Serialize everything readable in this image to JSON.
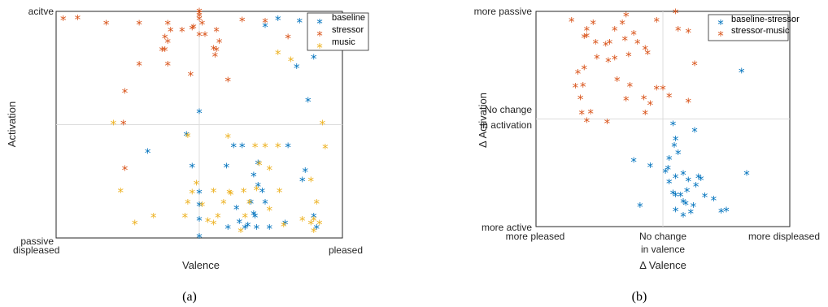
{
  "colors": {
    "c1": "#0072BD",
    "c2": "#D95319",
    "c3": "#EDB120"
  },
  "chart_data": [
    {
      "type": "scatter",
      "caption": "(a)",
      "xlabel": "Valence",
      "ylabel": "Activation",
      "xlim": [
        -1,
        1
      ],
      "ylim": [
        -1,
        1
      ],
      "ticks": {
        "y_top": "acitve",
        "y_bottom": "passive",
        "x_left": "displeased",
        "x_right": "pleased"
      },
      "legend_position": "top-right",
      "series": [
        {
          "name": "baseline",
          "marker": "*",
          "x": [
            0.0,
            0.76,
            0.8,
            0.68,
            0.7,
            0.55,
            0.46,
            -0.09,
            -0.36,
            -0.05,
            0.0,
            0.0,
            0.0,
            0.0,
            0.2,
            0.26,
            0.19,
            0.24,
            0.36,
            0.3,
            0.38,
            0.41,
            0.44,
            0.28,
            0.39,
            0.62,
            0.74,
            0.72,
            0.8,
            0.82,
            0.6,
            0.49,
            0.4,
            0.34,
            0.32,
            0.46,
            0.38,
            0.41
          ],
          "y": [
            0.1,
            0.2,
            0.58,
            0.5,
            0.9,
            0.92,
            0.86,
            -0.1,
            -0.25,
            -0.38,
            -0.61,
            -0.72,
            -0.85,
            -1.0,
            -0.92,
            -0.75,
            -0.38,
            -0.2,
            -0.7,
            -0.2,
            -0.46,
            -0.55,
            -0.6,
            -0.87,
            -0.82,
            -0.2,
            -0.42,
            -0.5,
            -0.82,
            -0.92,
            -0.88,
            -0.92,
            -0.92,
            -0.9,
            -0.92,
            -0.7,
            -0.8,
            -0.35
          ]
        },
        {
          "name": "stressor",
          "marker": "*",
          "x": [
            -0.95,
            -0.85,
            -0.65,
            -0.42,
            -0.22,
            -0.2,
            -0.12,
            -0.05,
            0.0,
            0.0,
            0.0,
            0.02,
            -0.24,
            -0.24,
            -0.22,
            -0.26,
            0.12,
            0.3,
            0.46,
            0.62,
            0.12,
            0.14,
            0.11,
            0.1,
            0.0,
            -0.04,
            0.0,
            0.04,
            -0.42,
            -0.52,
            -0.22,
            -0.06,
            0.2,
            -0.52,
            -0.53
          ],
          "y": [
            0.92,
            0.93,
            0.88,
            0.88,
            0.88,
            0.82,
            0.82,
            0.84,
            0.92,
            0.97,
            0.99,
            0.88,
            0.76,
            0.65,
            0.72,
            0.65,
            0.82,
            0.91,
            0.9,
            0.76,
            0.65,
            0.72,
            0.6,
            0.66,
            0.95,
            0.85,
            0.78,
            0.78,
            0.52,
            0.28,
            0.52,
            0.43,
            0.38,
            -0.4,
            0.0
          ]
        },
        {
          "name": "music",
          "marker": "*",
          "x": [
            0.64,
            0.55,
            0.78,
            0.84,
            -0.55,
            -0.6,
            -0.08,
            0.2,
            0.46,
            0.55,
            0.39,
            0.42,
            0.49,
            0.56,
            0.78,
            0.82,
            0.8,
            0.84,
            0.88,
            0.86,
            0.22,
            -0.02,
            0.02,
            -0.05,
            -0.08,
            0.13,
            0.1,
            0.06,
            0.17,
            0.4,
            0.32,
            0.31,
            0.35,
            0.49,
            0.59,
            0.72,
            0.78,
            0.8,
            0.1,
            -0.1,
            -0.45,
            -0.32,
            0.29,
            0.21
          ],
          "y": [
            0.56,
            0.62,
            0.85,
            0.82,
            -0.6,
            0.0,
            -0.11,
            -0.12,
            -0.2,
            -0.2,
            -0.2,
            -0.36,
            -0.4,
            -0.6,
            -0.5,
            -0.7,
            -0.85,
            -0.88,
            -0.21,
            0.0,
            -0.62,
            -0.53,
            -0.72,
            -0.61,
            -0.7,
            -0.82,
            -0.88,
            -0.86,
            -0.7,
            -0.58,
            -0.82,
            -0.6,
            -0.7,
            -0.76,
            -0.9,
            -0.85,
            -0.88,
            -0.95,
            -0.6,
            -0.82,
            -0.88,
            -0.82,
            -0.95,
            -0.61
          ]
        }
      ]
    },
    {
      "type": "scatter",
      "caption": "(b)",
      "xlabel": "Δ Valence",
      "ylabel": "Δ Activation",
      "xlim": [
        -1,
        1
      ],
      "ylim": [
        -1,
        1
      ],
      "ticks": {
        "y_top": "more passive",
        "y_mid": [
          "No change",
          "in activation"
        ],
        "y_bottom": "more active",
        "x_left": "more pleased",
        "x_mid": [
          "No change",
          "in valence"
        ],
        "x_right": "more displeased"
      },
      "legend_position": "top-right",
      "series": [
        {
          "name": "baseline-stressor",
          "marker": "*",
          "x": [
            0.62,
            0.08,
            0.25,
            0.1,
            0.09,
            0.12,
            0.05,
            -0.23,
            -0.1,
            0.02,
            0.04,
            0.1,
            0.16,
            0.2,
            0.28,
            0.3,
            0.26,
            0.66,
            0.05,
            0.08,
            0.1,
            0.19,
            0.14,
            0.16,
            0.18,
            0.22,
            0.33,
            0.4,
            0.46,
            0.5,
            -0.18,
            0.1,
            0.16,
            0.24
          ],
          "y": [
            0.43,
            -0.06,
            -0.12,
            -0.2,
            -0.26,
            -0.33,
            -0.38,
            -0.4,
            -0.45,
            -0.5,
            -0.47,
            -0.55,
            -0.52,
            -0.58,
            -0.55,
            -0.57,
            -0.63,
            -0.52,
            -0.6,
            -0.7,
            -0.72,
            -0.68,
            -0.72,
            -0.78,
            -0.8,
            -0.88,
            -0.73,
            -0.76,
            -0.87,
            -0.86,
            -0.82,
            -0.86,
            -0.91,
            -0.82
          ]
        },
        {
          "name": "stressor-music",
          "marker": "*",
          "x": [
            -0.29,
            -0.72,
            -0.55,
            -0.6,
            -0.32,
            -0.38,
            -0.05,
            0.12,
            -0.62,
            -0.45,
            -0.53,
            -0.6,
            -0.42,
            -0.3,
            -0.2,
            -0.12,
            -0.23,
            0.1,
            0.2,
            -0.38,
            -0.52,
            -0.43,
            -0.27,
            -0.14,
            0.25,
            -0.62,
            -0.63,
            -0.36,
            -0.26,
            -0.05,
            0.0,
            0.05,
            -0.65,
            -0.67,
            -0.29,
            -0.1,
            0.2,
            -0.57,
            -0.6,
            -0.44,
            -0.69,
            -0.15,
            -0.14,
            -0.64
          ],
          "y": [
            0.95,
            0.9,
            0.88,
            0.82,
            0.88,
            0.82,
            0.9,
            0.82,
            0.75,
            0.68,
            0.7,
            0.76,
            0.7,
            0.73,
            0.7,
            0.6,
            0.78,
            0.98,
            0.8,
            0.55,
            0.56,
            0.53,
            0.58,
            0.64,
            0.5,
            0.46,
            0.3,
            0.35,
            0.3,
            0.27,
            0.27,
            0.2,
            0.18,
            0.42,
            0.17,
            0.13,
            0.15,
            0.05,
            -0.03,
            -0.04,
            0.29,
            0.18,
            0.04,
            0.04
          ]
        }
      ]
    }
  ]
}
